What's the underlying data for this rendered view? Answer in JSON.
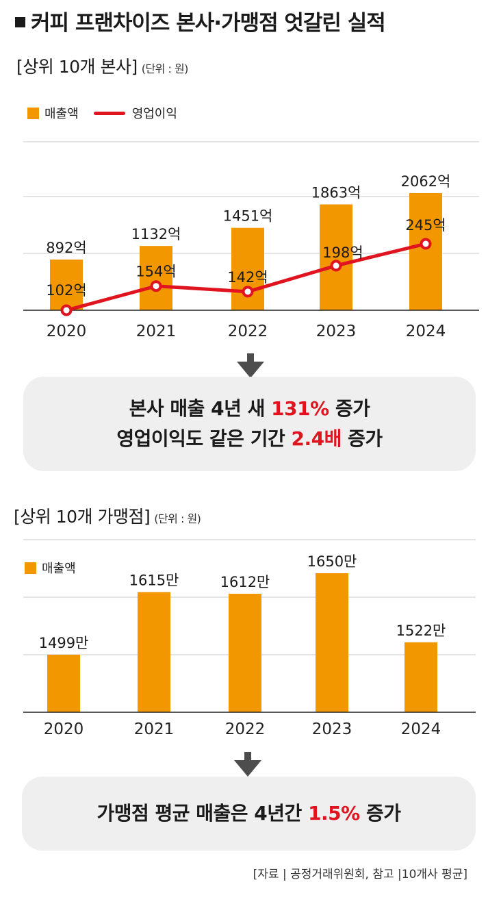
{
  "title": "커피 프랜차이즈 본사·가맹점 엇갈린 실적",
  "hq_section": {
    "title": "[상위 10개 본사]",
    "unit": "(단위 : 원)",
    "legend_bar": "매출액",
    "legend_line": "영업이익"
  },
  "hq_summary": {
    "line1_pre": "본사 매출 4년 새 ",
    "line1_hl": "131%",
    "line1_post": " 증가",
    "line2_pre": "영업이익도 같은 기간 ",
    "line2_hl": "2.4배",
    "line2_post": " 증가"
  },
  "fr_section": {
    "title": "[상위 10개 가맹점]",
    "unit": "(단위 : 원)",
    "legend_bar": "매출액"
  },
  "fr_summary": {
    "pre": "가맹점 평균 매출은 4년간 ",
    "hl": "1.5%",
    "post": " 증가"
  },
  "source": "[자료 | 공정거래위원회, 참고 |10개사 평균]",
  "colors": {
    "bar": "#f29700",
    "line": "#e0141e",
    "highlight": "#e0141e"
  },
  "chart_data": [
    {
      "type": "bar",
      "categories": [
        "2020",
        "2021",
        "2022",
        "2023",
        "2024"
      ],
      "series": [
        {
          "name": "매출액",
          "type": "bar",
          "values": [
            892,
            1132,
            1451,
            1863,
            2062
          ],
          "labels": [
            "892억",
            "1132억",
            "1451억",
            "1863억",
            "2062억"
          ]
        },
        {
          "name": "영업이익",
          "type": "line",
          "values": [
            102,
            154,
            142,
            198,
            245
          ],
          "labels": [
            "102억",
            "154억",
            "142억",
            "198억",
            "245억"
          ]
        }
      ],
      "grid": true
    },
    {
      "type": "bar",
      "categories": [
        "2020",
        "2021",
        "2022",
        "2023",
        "2024"
      ],
      "series": [
        {
          "name": "매출액",
          "values": [
            1499,
            1615,
            1612,
            1650,
            1522
          ],
          "labels": [
            "1499만",
            "1615만",
            "1612만",
            "1650만",
            "1522만"
          ]
        }
      ],
      "grid": true
    }
  ]
}
